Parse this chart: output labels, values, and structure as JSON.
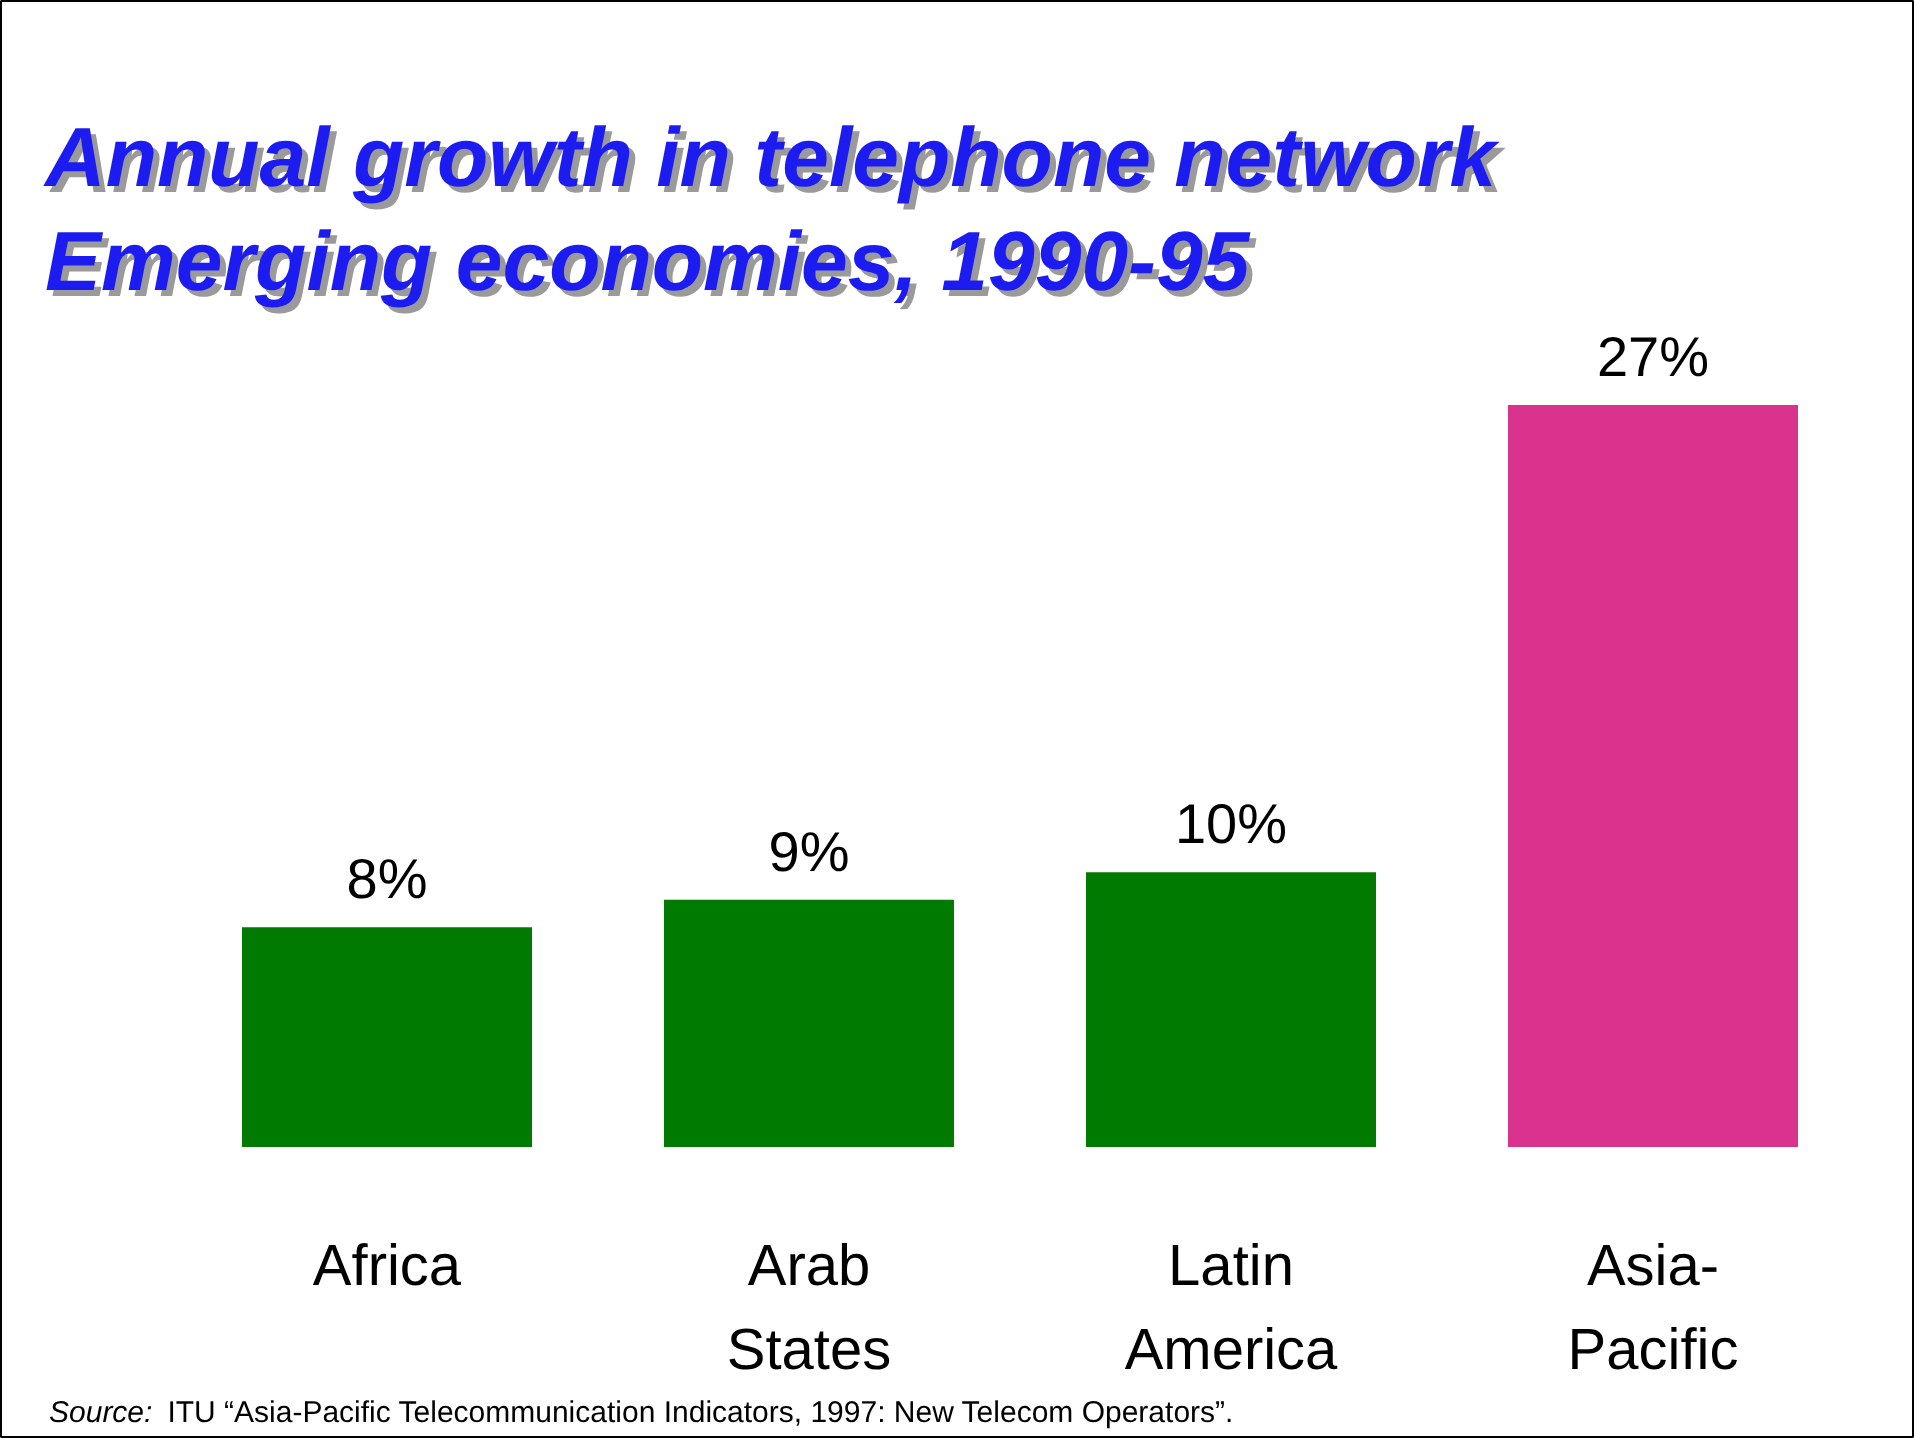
{
  "chart_data": {
    "type": "bar",
    "title": "Annual growth in telephone network\nEmerging economies, 1990-95",
    "categories": [
      "Africa",
      "Arab States",
      "Latin America",
      "Asia-Pacific"
    ],
    "values": [
      8,
      9,
      10,
      27
    ],
    "colors": [
      "#007a00",
      "#007a00",
      "#007a00",
      "#d9338e"
    ],
    "value_labels": [
      "8%",
      "9%",
      "10%",
      "27%"
    ],
    "annotations": [
      "Source:  ITU “Asia-Pacific Telecommunication Indicators, 1997: New Telecom Operators”."
    ]
  }
}
